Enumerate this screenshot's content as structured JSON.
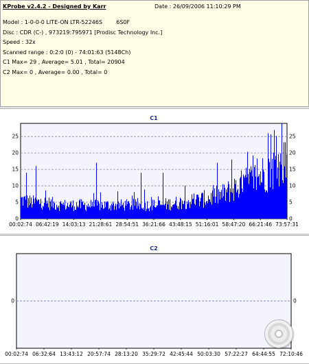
{
  "header": {
    "title": "KProbe v2.4.2 - Designed by Karr",
    "date": "Date : 26/09/2006 11:10:29 PM"
  },
  "info": {
    "model": "Model : 1-0-0-0 LITE-ON LTR-52246S        6S0F",
    "disc": "Disc : CDR (C-) , 973219:795971 [Prodisc Technology Inc.]",
    "speed": "Speed : 32x",
    "range": "Scanned range : 0:2:0 (0) - 74:01:63 (5148Ch)",
    "c1": "C1 Max= 29 , Average= 5.01 , Total= 20904",
    "c2": "C2 Max= 0 , Average= 0.00 , Total= 0"
  },
  "chart_data": [
    {
      "type": "bar",
      "title": "C1",
      "ylim": [
        0,
        29
      ],
      "yticks": [
        0,
        5,
        10,
        15,
        20,
        25
      ],
      "xticks": [
        "00:02:74",
        "06:42:19",
        "14:03:13",
        "21:28:61",
        "28:54:51",
        "36:21:66",
        "43:48:15",
        "51:16:01",
        "58:47:20",
        "66:21:46",
        "73:57:31"
      ],
      "x_range": [
        "00:02:74",
        "74:01:63"
      ],
      "grid": true,
      "color": "#0000ff",
      "envelope": [
        7,
        6,
        6,
        5.5,
        5,
        5,
        5,
        5,
        5,
        5,
        5,
        5,
        5,
        5,
        5.5,
        6,
        6.5,
        7,
        8,
        9,
        11,
        13,
        15,
        17,
        19,
        21
      ],
      "notable_peaks": [
        {
          "x": "01:30:00",
          "value": 14
        },
        {
          "x": "04:10:00",
          "value": 16
        },
        {
          "x": "21:00:00",
          "value": 17
        },
        {
          "x": "33:30:00",
          "value": 14
        },
        {
          "x": "39:40:00",
          "value": 14
        },
        {
          "x": "58:40:00",
          "value": 18
        },
        {
          "x": "70:40:00",
          "value": 27
        },
        {
          "x": "72:40:00",
          "value": 29
        }
      ]
    },
    {
      "type": "bar",
      "title": "C2",
      "ylim": [
        -1,
        1
      ],
      "yticks": [
        0
      ],
      "xticks": [
        "00:02:74",
        "06:32:64",
        "13:43:12",
        "20:57:74",
        "28:13:20",
        "35:29:72",
        "42:45:44",
        "50:03:30",
        "57:22:27",
        "64:44:55",
        "72:10:46"
      ],
      "grid": true,
      "values": [
        0
      ]
    }
  ]
}
